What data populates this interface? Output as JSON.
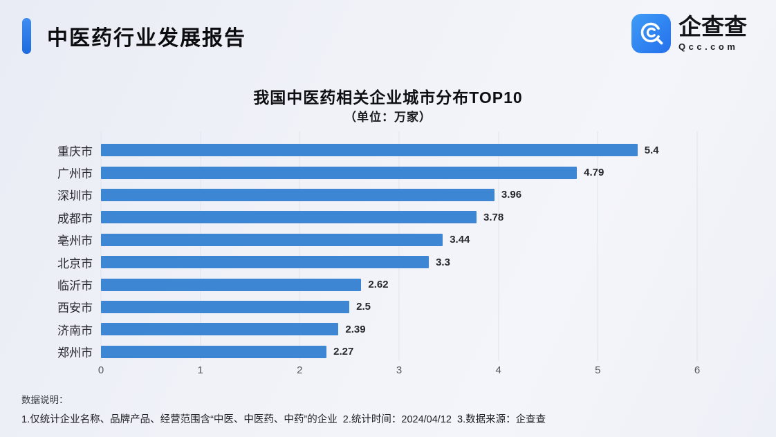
{
  "header": {
    "title": "中医药行业发展报告",
    "accent_color": "#2b7ce9"
  },
  "logo": {
    "brand": "企查查",
    "domain": "Qcc.com",
    "icon": "magnifier-c-icon",
    "icon_color": "#2e85f2"
  },
  "chart_data": {
    "type": "bar",
    "orientation": "horizontal",
    "title": "我国中医药相关企业城市分布TOP10",
    "subtitle": "（单位：万家）",
    "categories": [
      "重庆市",
      "广州市",
      "深圳市",
      "成都市",
      "亳州市",
      "北京市",
      "临沂市",
      "西安市",
      "济南市",
      "郑州市"
    ],
    "values": [
      5.4,
      4.79,
      3.96,
      3.78,
      3.44,
      3.3,
      2.62,
      2.5,
      2.39,
      2.27
    ],
    "xlabel": "",
    "ylabel": "",
    "xlim": [
      0,
      6
    ],
    "xticks": [
      0,
      1,
      2,
      3,
      4,
      5,
      6
    ],
    "grid": true,
    "legend": "none",
    "bar_color": "#3d86d3"
  },
  "footer": {
    "label": "数据说明：",
    "note": "1.仅统计企业名称、品牌产品、经营范围含“中医、中医药、中药”的企业  2.统计时间：2024/04/12  3.数据来源：企查查"
  }
}
